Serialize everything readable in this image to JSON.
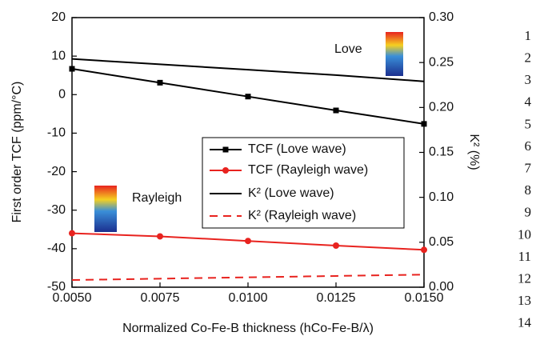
{
  "chart_data": {
    "type": "line",
    "xlabel": "Normalized Co-Fe-B thickness (hCo-Fe-B/λ)",
    "ylabel": "First order TCF (ppm/°C)",
    "y2label": "K² (%)",
    "x": [
      0.005,
      0.0075,
      0.01,
      0.0125,
      0.015
    ],
    "xlim": [
      0.005,
      0.015
    ],
    "xticks": [
      {
        "value": 0.005,
        "label": "0.0050"
      },
      {
        "value": 0.0075,
        "label": "0.0075"
      },
      {
        "value": 0.01,
        "label": "0.0100"
      },
      {
        "value": 0.0125,
        "label": "0.0125"
      },
      {
        "value": 0.015,
        "label": "0.0150"
      }
    ],
    "ylim": [
      -50,
      20
    ],
    "yticks": [
      -50,
      -40,
      -30,
      -20,
      -10,
      0,
      10,
      20
    ],
    "y2lim": [
      0,
      0.3
    ],
    "y2ticks": [
      {
        "value": 0,
        "label": "0.00"
      },
      {
        "value": 0.05,
        "label": "0.05"
      },
      {
        "value": 0.1,
        "label": "0.10"
      },
      {
        "value": 0.15,
        "label": "0.15"
      },
      {
        "value": 0.2,
        "label": "0.20"
      },
      {
        "value": 0.25,
        "label": "0.25"
      },
      {
        "value": 0.3,
        "label": "0.30"
      }
    ],
    "series": [
      {
        "name": "TCF (Love wave)",
        "color": "#000000",
        "marker": "square",
        "values": [
          6.7,
          3.1,
          -0.5,
          -4.1,
          -7.6
        ]
      },
      {
        "name": "TCF (Rayleigh wave)",
        "color": "#e8231f",
        "marker": "circle",
        "values": [
          -36,
          -36.8,
          -38,
          -39.2,
          -40.3
        ]
      },
      {
        "name": "K² (Love wave)",
        "color": "#000000",
        "axis": "y2",
        "values": [
          0.254,
          0.248,
          0.242,
          0.236,
          0.229
        ]
      },
      {
        "name": "K² (Rayleigh wave)",
        "color": "#e8231f",
        "axis": "y2",
        "dash": true,
        "values": [
          0.008,
          0.0095,
          0.011,
          0.0125,
          0.014
        ]
      }
    ],
    "annotations": [
      "Love",
      "Rayleigh"
    ]
  },
  "line_numbers": [
    "1",
    "2",
    "3",
    "4",
    "5",
    "6",
    "7",
    "8",
    "9",
    "10",
    "11",
    "12",
    "13",
    "14"
  ]
}
